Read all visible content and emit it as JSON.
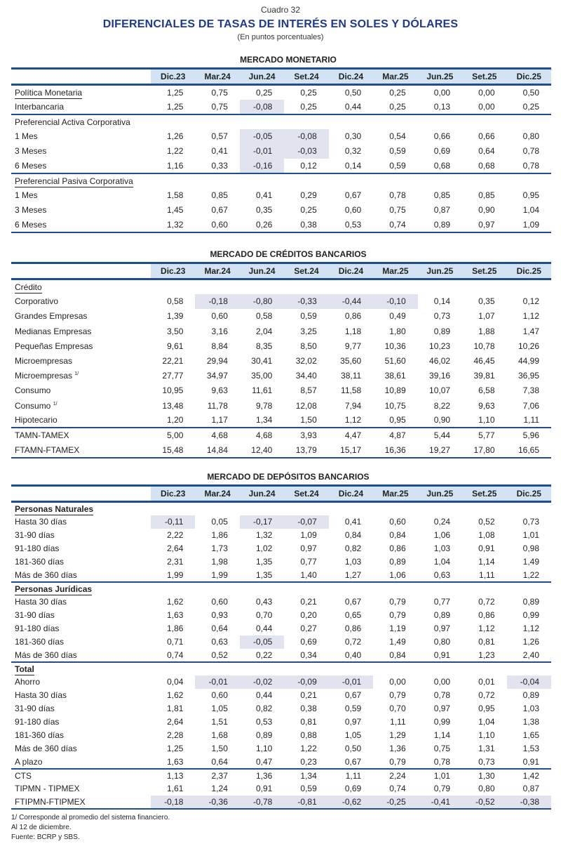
{
  "header": {
    "cuadro": "Cuadro 32",
    "title": "DIFERENCIALES DE TASAS DE INTERÉS EN SOLES Y DÓLARES",
    "subtitle": "(En puntos porcentuales)"
  },
  "columns": [
    "Dic.23",
    "Mar.24",
    "Jun.24",
    "Set.24",
    "Dic.24",
    "Mar.25",
    "Jun.25",
    "Set.25",
    "Dic.25"
  ],
  "colors": {
    "title": "#1f3a8a",
    "rule": "#1f4e8c",
    "header_bg": "#d3e3f3",
    "negative_bg": "#e1e3ef"
  },
  "sections": [
    {
      "title": "MERCADO MONETARIO",
      "groups": [
        {
          "rows": [
            {
              "label": "Política Monetaria",
              "underline": true,
              "values": [
                "1,25",
                "0,75",
                "0,25",
                "0,25",
                "0,50",
                "0,25",
                "0,00",
                "0,00",
                "0,50"
              ]
            },
            {
              "label": "Interbancaria",
              "values": [
                "1,25",
                "0,75",
                "-0,08",
                "0,25",
                "0,44",
                "0,25",
                "0,13",
                "0,00",
                "0,25"
              ]
            }
          ]
        },
        {
          "rows": [
            {
              "label": "Preferencial Activa Corporativa",
              "heading": true
            },
            {
              "label": "1 Mes",
              "values": [
                "1,26",
                "0,57",
                "-0,05",
                "-0,08",
                "0,30",
                "0,54",
                "0,66",
                "0,66",
                "0,80"
              ]
            },
            {
              "label": "3 Meses",
              "values": [
                "1,22",
                "0,41",
                "-0,01",
                "-0,03",
                "0,32",
                "0,59",
                "0,69",
                "0,64",
                "0,78"
              ]
            },
            {
              "label": "6 Meses",
              "values": [
                "1,16",
                "0,33",
                "-0,16",
                "0,12",
                "0,14",
                "0,59",
                "0,68",
                "0,68",
                "0,78"
              ]
            }
          ]
        },
        {
          "rows": [
            {
              "label": "Preferencial Pasiva Corporativa",
              "heading": true,
              "underline": true
            },
            {
              "label": "1 Mes",
              "values": [
                "1,58",
                "0,85",
                "0,41",
                "0,29",
                "0,67",
                "0,78",
                "0,85",
                "0,85",
                "0,95"
              ]
            },
            {
              "label": "3 Meses",
              "values": [
                "1,45",
                "0,67",
                "0,35",
                "0,25",
                "0,60",
                "0,75",
                "0,87",
                "0,90",
                "1,04"
              ]
            },
            {
              "label": "6 Meses",
              "values": [
                "1,32",
                "0,60",
                "0,26",
                "0,38",
                "0,53",
                "0,74",
                "0,89",
                "0,97",
                "1,09"
              ]
            }
          ]
        }
      ]
    },
    {
      "title": "MERCADO DE CRÉDITOS BANCARIOS",
      "groups": [
        {
          "rows": [
            {
              "label": "Crédito",
              "heading": true,
              "underline": true
            },
            {
              "label": "Corporativo",
              "values": [
                "0,58",
                "-0,18",
                "-0,80",
                "-0,33",
                "-0,44",
                "-0,10",
                "0,14",
                "0,35",
                "0,12"
              ]
            },
            {
              "label": "Grandes Empresas",
              "values": [
                "1,39",
                "0,60",
                "0,58",
                "0,59",
                "0,86",
                "0,49",
                "0,73",
                "1,07",
                "1,12"
              ]
            },
            {
              "label": "Medianas Empresas",
              "values": [
                "3,50",
                "3,16",
                "2,04",
                "3,25",
                "1,18",
                "1,80",
                "0,89",
                "1,88",
                "1,47"
              ]
            },
            {
              "label": "Pequeñas Empresas",
              "values": [
                "9,61",
                "8,84",
                "8,35",
                "8,50",
                "9,77",
                "10,36",
                "10,23",
                "10,78",
                "10,26"
              ]
            },
            {
              "label": "Microempresas",
              "values": [
                "22,21",
                "29,94",
                "30,41",
                "32,02",
                "35,60",
                "51,60",
                "46,02",
                "46,45",
                "44,99"
              ]
            },
            {
              "label": "Microempresas",
              "sup": "1/",
              "values": [
                "27,77",
                "34,97",
                "35,00",
                "34,40",
                "38,11",
                "38,61",
                "39,16",
                "39,81",
                "36,95"
              ]
            },
            {
              "label": "Consumo",
              "values": [
                "10,95",
                "9,63",
                "11,61",
                "8,57",
                "11,58",
                "10,89",
                "10,07",
                "6,58",
                "7,38"
              ]
            },
            {
              "label": "Consumo",
              "sup": "1/",
              "values": [
                "13,48",
                "11,78",
                "9,78",
                "12,08",
                "7,94",
                "10,75",
                "8,22",
                "9,63",
                "7,06"
              ]
            },
            {
              "label": "Hipotecario",
              "values": [
                "1,20",
                "1,17",
                "1,34",
                "1,50",
                "1,12",
                "0,95",
                "0,90",
                "1,10",
                "1,11"
              ]
            }
          ]
        },
        {
          "rows": [
            {
              "label": "TAMN-TAMEX",
              "values": [
                "5,00",
                "4,68",
                "4,68",
                "3,93",
                "4,47",
                "4,87",
                "5,44",
                "5,77",
                "5,96"
              ]
            },
            {
              "label": "FTAMN-FTAMEX",
              "values": [
                "15,48",
                "14,84",
                "12,40",
                "13,79",
                "15,17",
                "16,36",
                "19,27",
                "17,80",
                "16,65"
              ]
            }
          ]
        }
      ]
    },
    {
      "title": "MERCADO DE DEPÓSITOS BANCARIOS",
      "groups": [
        {
          "rows": [
            {
              "label": "Personas Naturales",
              "heading": true,
              "underline": true,
              "bold": true
            },
            {
              "label": "Hasta 30 días",
              "values": [
                "-0,11",
                "0,05",
                "-0,17",
                "-0,07",
                "0,41",
                "0,60",
                "0,24",
                "0,52",
                "0,73"
              ]
            },
            {
              "label": "31-90 días",
              "values": [
                "2,22",
                "1,86",
                "1,32",
                "1,09",
                "0,84",
                "0,84",
                "1,06",
                "1,08",
                "1,01"
              ]
            },
            {
              "label": "91-180 días",
              "values": [
                "2,64",
                "1,73",
                "1,02",
                "0,97",
                "0,82",
                "0,86",
                "1,03",
                "0,91",
                "0,98"
              ]
            },
            {
              "label": "181-360 días",
              "values": [
                "2,31",
                "1,98",
                "1,35",
                "0,77",
                "1,03",
                "0,89",
                "1,04",
                "1,14",
                "1,49"
              ]
            },
            {
              "label": "Más de 360 días",
              "values": [
                "1,99",
                "1,99",
                "1,35",
                "1,40",
                "1,27",
                "1,06",
                "0,63",
                "1,11",
                "1,22"
              ]
            }
          ]
        },
        {
          "rows": [
            {
              "label": "Personas Jurídicas",
              "heading": true,
              "underline": true,
              "bold": true
            },
            {
              "label": "Hasta 30 días",
              "values": [
                "1,62",
                "0,60",
                "0,43",
                "0,21",
                "0,67",
                "0,79",
                "0,77",
                "0,72",
                "0,89"
              ]
            },
            {
              "label": "31-90 días",
              "values": [
                "1,63",
                "0,93",
                "0,70",
                "0,20",
                "0,65",
                "0,79",
                "0,89",
                "0,86",
                "0,99"
              ]
            },
            {
              "label": "91-180 días",
              "values": [
                "1,86",
                "0,64",
                "0,44",
                "0,27",
                "0,86",
                "1,19",
                "0,97",
                "1,12",
                "1,12"
              ]
            },
            {
              "label": "181-360 días",
              "values": [
                "0,71",
                "0,63",
                "-0,05",
                "0,69",
                "0,72",
                "1,49",
                "0,80",
                "0,81",
                "1,26"
              ]
            },
            {
              "label": "Más de 360 días",
              "values": [
                "0,74",
                "0,52",
                "0,22",
                "0,34",
                "0,40",
                "0,84",
                "0,91",
                "1,23",
                "2,40"
              ]
            }
          ]
        },
        {
          "rows": [
            {
              "label": "Total",
              "heading": true,
              "underline": true,
              "bold": true
            },
            {
              "label": "Ahorro",
              "values": [
                "0,04",
                "-0,01",
                "-0,02",
                "-0,09",
                "-0,01",
                "0,00",
                "0,00",
                "0,01",
                "-0,04"
              ]
            },
            {
              "label": "Hasta 30 días",
              "values": [
                "1,62",
                "0,60",
                "0,44",
                "0,21",
                "0,67",
                "0,79",
                "0,78",
                "0,72",
                "0,89"
              ]
            },
            {
              "label": "31-90 días",
              "values": [
                "1,81",
                "1,05",
                "0,82",
                "0,38",
                "0,59",
                "0,70",
                "0,97",
                "0,95",
                "1,03"
              ]
            },
            {
              "label": "91-180 días",
              "values": [
                "2,64",
                "1,51",
                "0,53",
                "0,81",
                "0,97",
                "1,11",
                "0,99",
                "1,04",
                "1,38"
              ]
            },
            {
              "label": "181-360 días",
              "values": [
                "2,28",
                "1,68",
                "0,89",
                "0,88",
                "1,05",
                "1,29",
                "1,14",
                "1,10",
                "1,65"
              ]
            },
            {
              "label": "Más de 360 días",
              "values": [
                "1,25",
                "1,50",
                "1,10",
                "1,22",
                "0,50",
                "1,36",
                "0,75",
                "1,31",
                "1,53"
              ]
            },
            {
              "label": "A plazo",
              "values": [
                "1,63",
                "0,64",
                "0,47",
                "0,23",
                "0,67",
                "0,79",
                "0,78",
                "0,73",
                "0,91"
              ]
            }
          ]
        },
        {
          "rows": [
            {
              "label": "CTS",
              "values": [
                "1,13",
                "2,37",
                "1,36",
                "1,34",
                "1,11",
                "2,24",
                "1,01",
                "1,30",
                "1,42"
              ]
            },
            {
              "label": "TIPMN - TIPMEX",
              "values": [
                "1,61",
                "1,24",
                "0,91",
                "0,59",
                "0,69",
                "0,74",
                "0,79",
                "0,80",
                "0,87"
              ]
            },
            {
              "label": "FTIPMN-FTIPMEX",
              "values": [
                "-0,18",
                "-0,36",
                "-0,78",
                "-0,81",
                "-0,62",
                "-0,25",
                "-0,41",
                "-0,52",
                "-0,38"
              ]
            }
          ]
        }
      ]
    }
  ],
  "footnotes": [
    "1/ Corresponde al promedio del sistema financiero.",
    "Al 12 de diciembre.",
    "Fuente: BCRP y SBS."
  ]
}
